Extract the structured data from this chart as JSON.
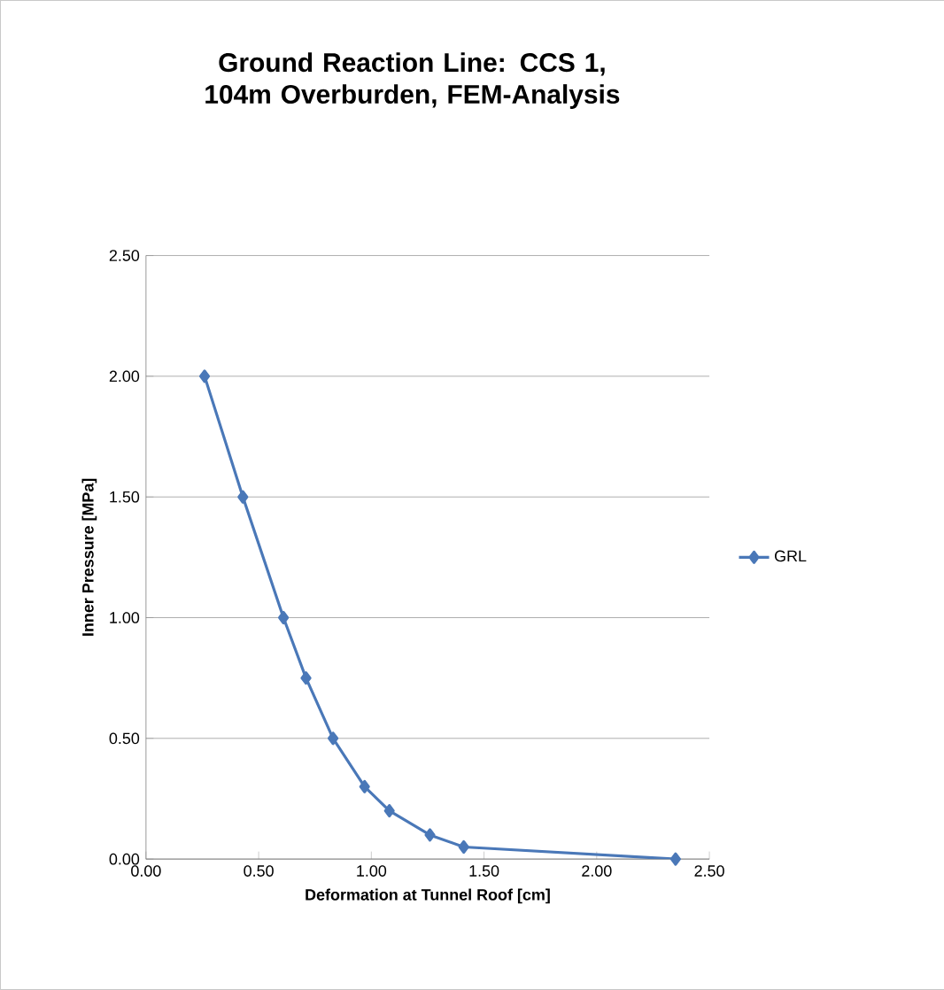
{
  "chart_data": {
    "type": "line",
    "title": "Ground Reaction Line: CCS 1, 104m Overburden, FEM-Analysis",
    "xlabel": "Deformation at Tunnel Roof [cm]",
    "ylabel": "Inner Pressure [MPa]",
    "x": [
      0.26,
      0.43,
      0.61,
      0.71,
      0.83,
      0.97,
      1.08,
      1.26,
      1.41,
      2.35
    ],
    "series": [
      {
        "name": "GRL",
        "color": "#4a78b8",
        "values": [
          2.0,
          1.5,
          1.0,
          0.75,
          0.5,
          0.3,
          0.2,
          0.1,
          0.05,
          0.0
        ]
      }
    ],
    "xlim": [
      0,
      2.5
    ],
    "ylim": [
      0,
      2.5
    ],
    "xticks": [
      {
        "value": 0,
        "label": "0.00"
      },
      {
        "value": 0.5,
        "label": "0.50"
      },
      {
        "value": 1,
        "label": "1.00"
      },
      {
        "value": 1.5,
        "label": "1.50"
      },
      {
        "value": 2,
        "label": "2.00"
      },
      {
        "value": 2.5,
        "label": "2.50"
      }
    ],
    "yticks": [
      {
        "value": 0,
        "label": "0.00"
      },
      {
        "value": 0.5,
        "label": "0.50"
      },
      {
        "value": 1,
        "label": "1.00"
      },
      {
        "value": 1.5,
        "label": "1.50"
      },
      {
        "value": 2,
        "label": "2.00"
      },
      {
        "value": 2.5,
        "label": "2.50"
      }
    ],
    "grid": "y",
    "legend": "right",
    "marker": "diamond",
    "line_style": "solid"
  }
}
